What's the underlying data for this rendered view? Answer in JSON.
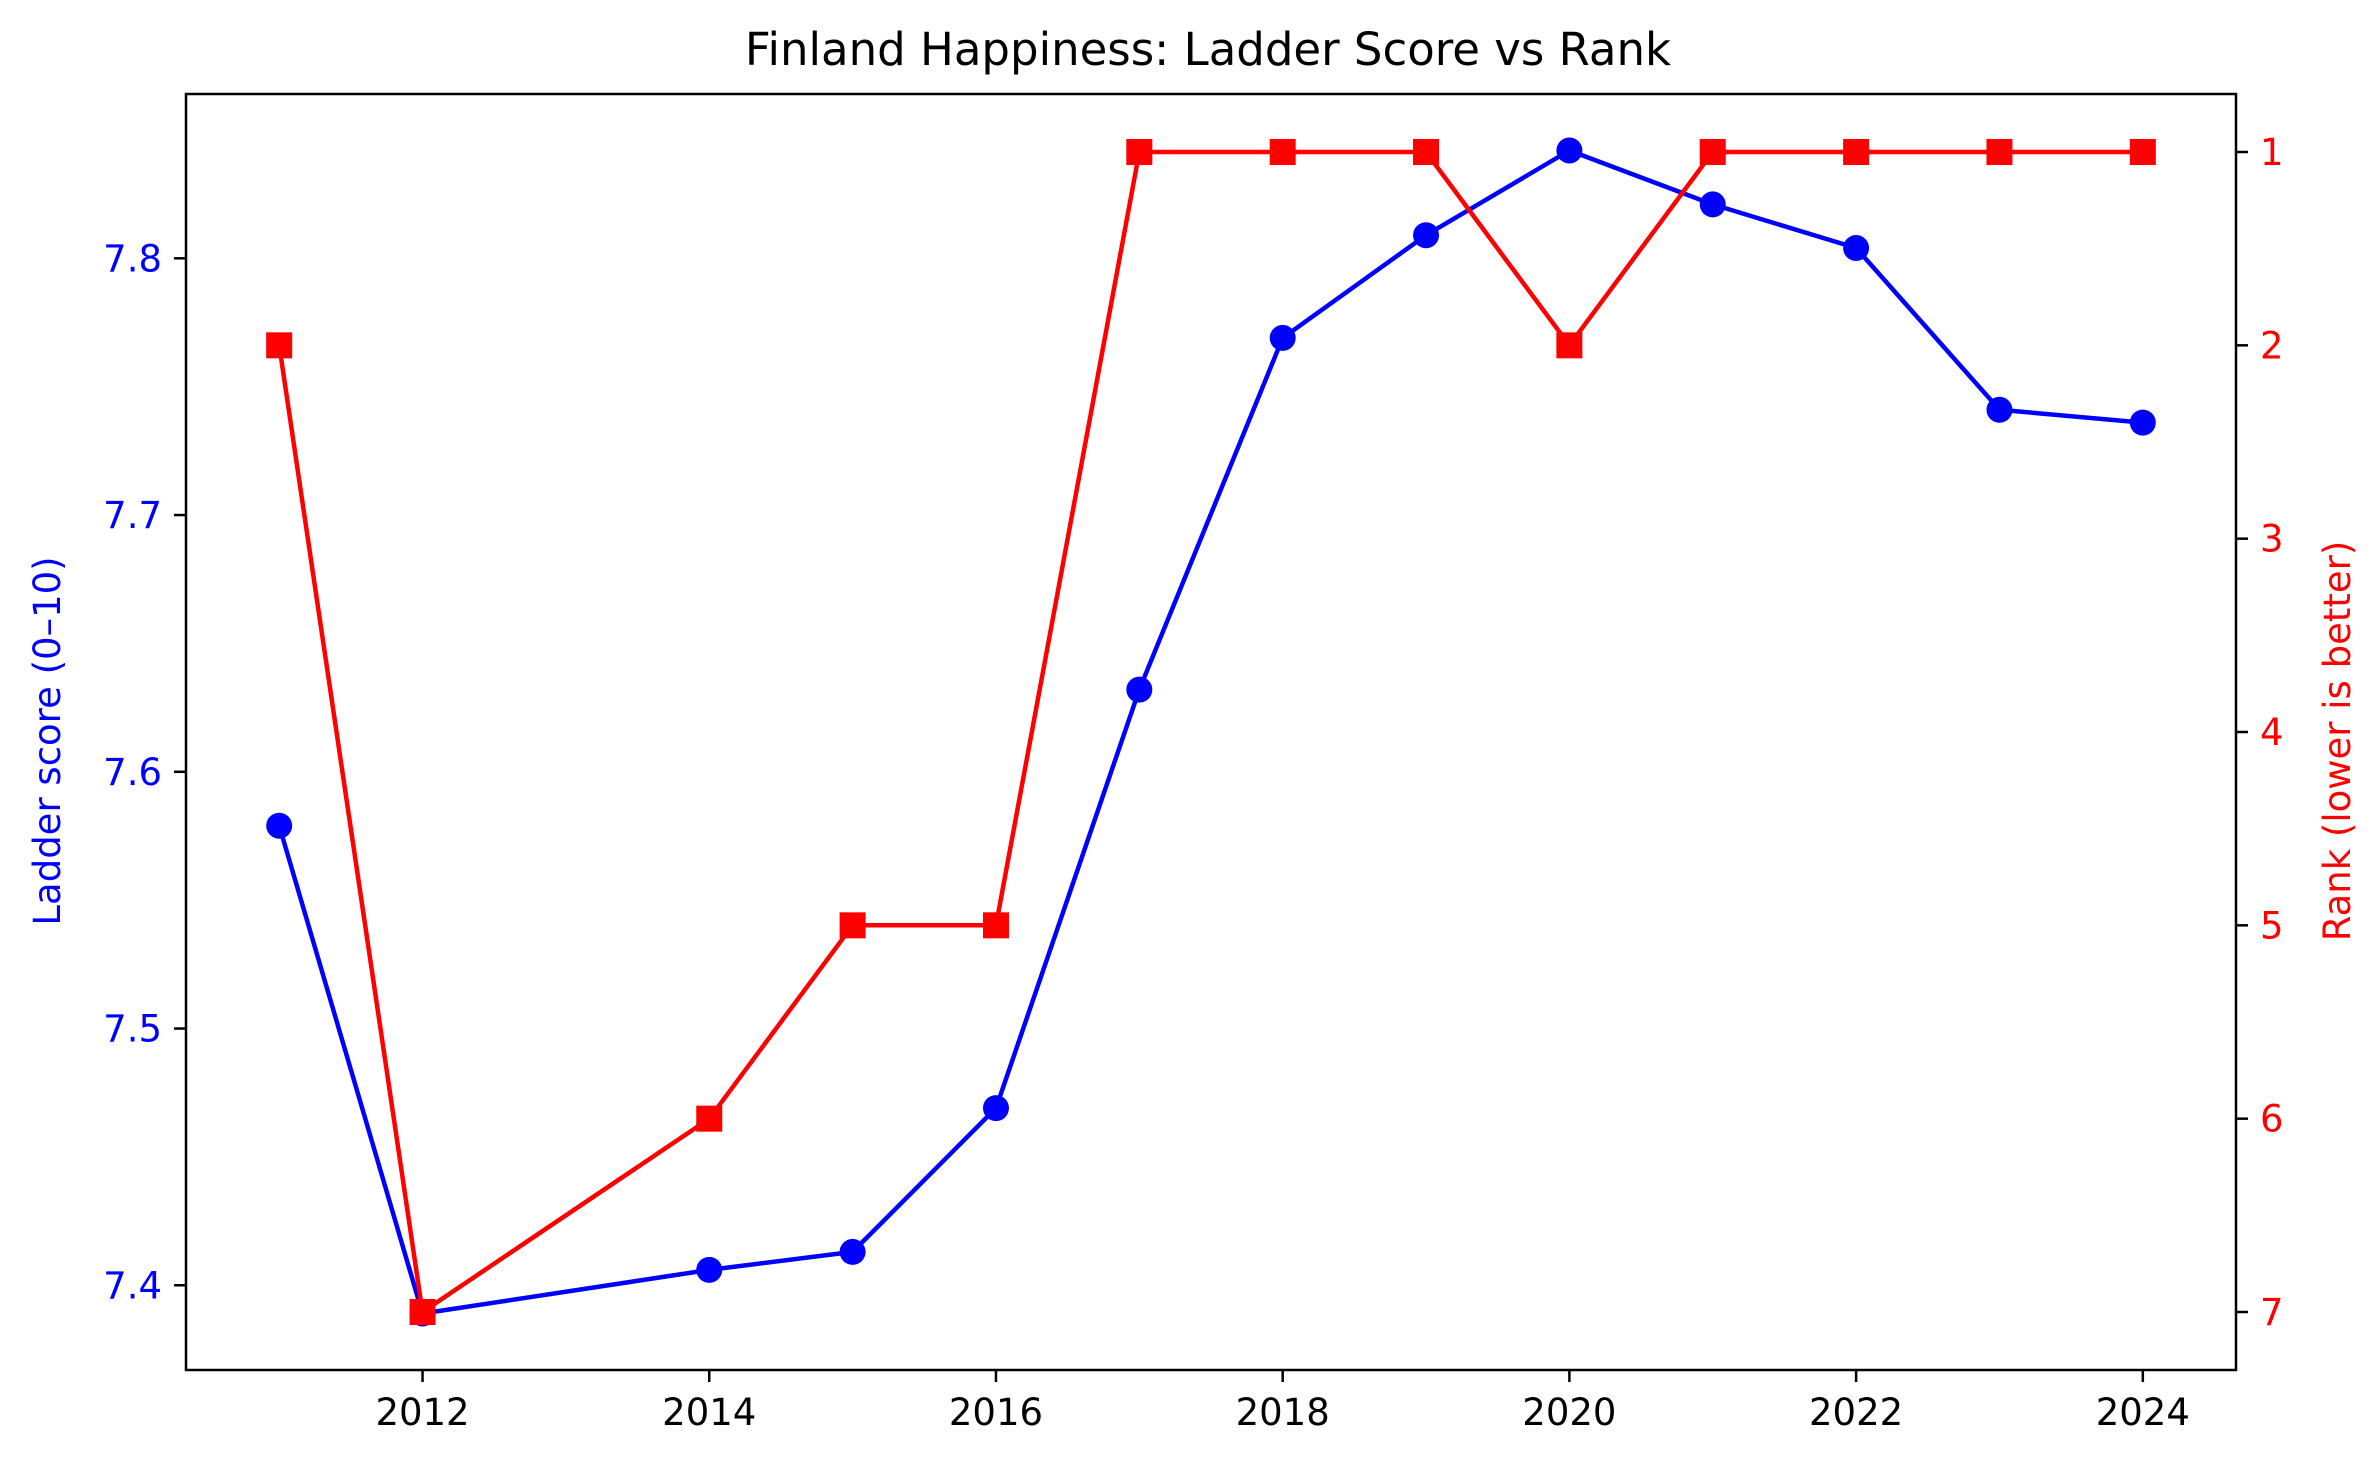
{
  "chart_data": {
    "type": "line",
    "title": "Finland Happiness: Ladder Score vs Rank",
    "xlabel": "",
    "ylabel": "Ladder score (0–10)",
    "y2label": "Rank (lower is better)",
    "x": [
      2011,
      2012,
      2014,
      2015,
      2016,
      2017,
      2018,
      2019,
      2020,
      2021,
      2022,
      2023,
      2024
    ],
    "xlim": [
      2010.35,
      2024.65
    ],
    "xticks": [
      2012,
      2014,
      2016,
      2018,
      2020,
      2022,
      2024
    ],
    "ylim": [
      7.367,
      7.864
    ],
    "yticks": [
      7.4,
      7.5,
      7.6,
      7.7,
      7.8
    ],
    "y2lim": [
      7.3,
      0.7
    ],
    "y2_inverted": true,
    "y2ticks": [
      1,
      2,
      3,
      4,
      5,
      6,
      7
    ],
    "grid": false,
    "series": [
      {
        "axis": "left",
        "marker": "circle",
        "color": "#0000ff",
        "values": [
          7.579,
          7.389,
          7.406,
          7.413,
          7.469,
          7.632,
          7.769,
          7.809,
          7.842,
          7.821,
          7.804,
          7.741,
          7.736
        ]
      },
      {
        "axis": "right",
        "marker": "square",
        "color": "#ff0000",
        "values": [
          2,
          7,
          6,
          5,
          5,
          1,
          1,
          1,
          2,
          1,
          1,
          1,
          1
        ]
      }
    ],
    "colors": {
      "left_axis": "#0000ff",
      "right_axis": "#ff0000",
      "frame": "#000000"
    }
  }
}
